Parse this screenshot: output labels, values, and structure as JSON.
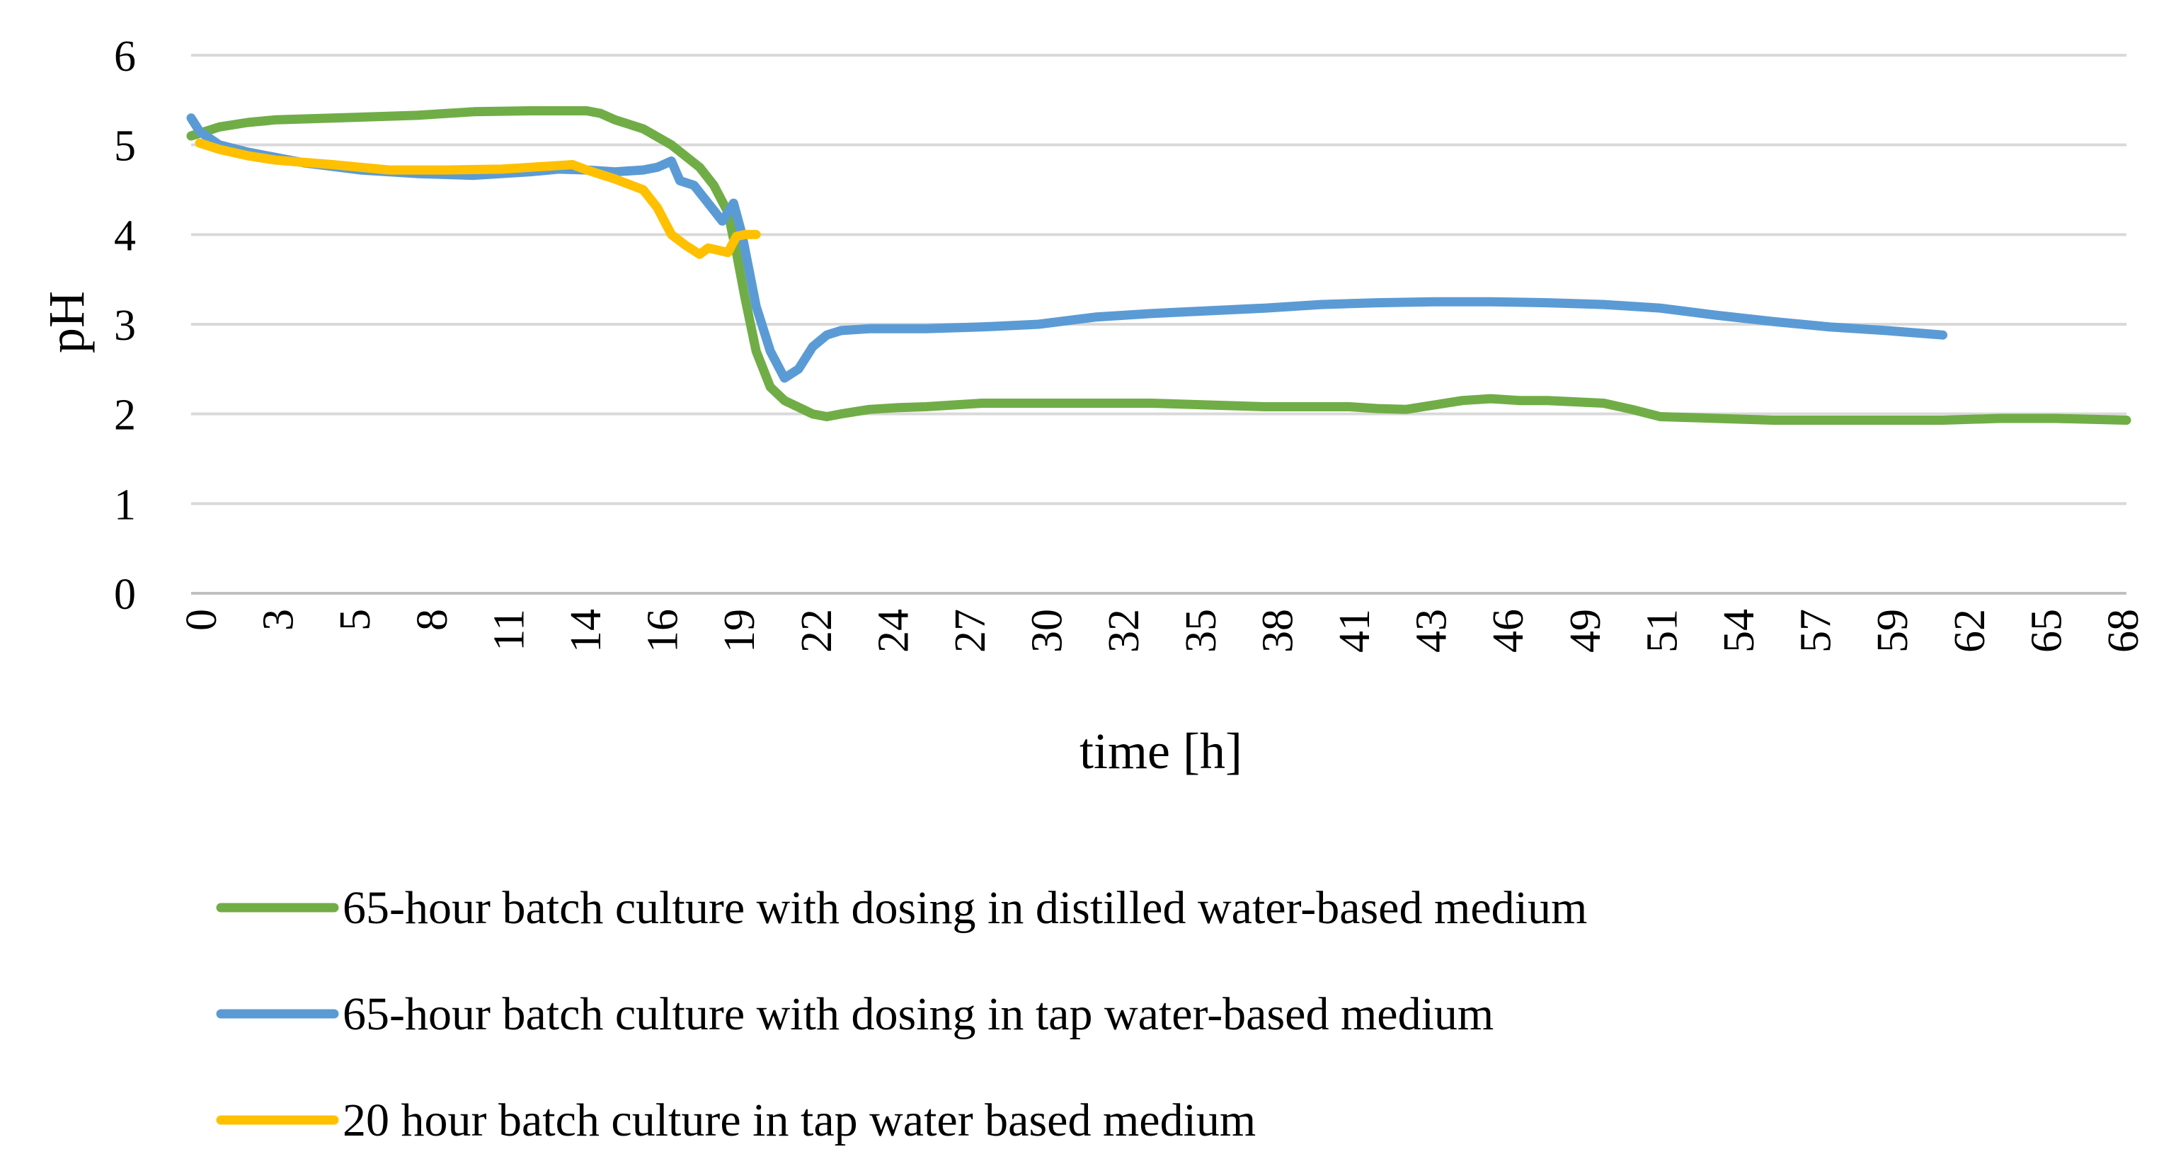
{
  "chart_data": {
    "type": "line",
    "title": "",
    "xlabel": "time [h]",
    "ylabel": "pH",
    "ylim": [
      0,
      6
    ],
    "yticks": [
      "0",
      "1",
      "2",
      "3",
      "4",
      "5",
      "6"
    ],
    "xlim": [
      0,
      68.5
    ],
    "xticks": [
      "0",
      "3",
      "5",
      "8",
      "11",
      "14",
      "16",
      "19",
      "22",
      "24",
      "27",
      "30",
      "32",
      "35",
      "38",
      "41",
      "43",
      "46",
      "49",
      "51",
      "54",
      "57",
      "59",
      "62",
      "65",
      "68"
    ],
    "grid": "horizontal",
    "legend_position": "bottom",
    "series": [
      {
        "name": "65-hour batch culture with dosing in distilled water-based medium",
        "color": "#70AD47",
        "x": [
          0,
          1,
          2,
          3,
          5,
          8,
          10,
          12,
          13,
          14,
          14.5,
          15,
          16,
          17,
          18,
          18.5,
          19,
          19.3,
          19.6,
          20,
          20.5,
          21,
          22,
          22.5,
          23,
          24,
          25,
          26,
          27,
          28,
          30,
          32,
          34,
          36,
          38,
          40,
          41,
          42,
          43,
          44,
          45,
          46,
          47,
          48,
          50,
          51,
          52,
          54,
          56,
          58,
          60,
          62,
          64,
          66,
          68.5
        ],
        "y": [
          5.1,
          5.2,
          5.25,
          5.28,
          5.3,
          5.33,
          5.37,
          5.38,
          5.38,
          5.38,
          5.35,
          5.28,
          5.18,
          5.0,
          4.75,
          4.55,
          4.25,
          3.8,
          3.3,
          2.7,
          2.3,
          2.15,
          2.0,
          1.97,
          2.0,
          2.05,
          2.07,
          2.08,
          2.1,
          2.12,
          2.12,
          2.12,
          2.12,
          2.1,
          2.08,
          2.08,
          2.08,
          2.06,
          2.05,
          2.1,
          2.15,
          2.17,
          2.15,
          2.15,
          2.12,
          2.05,
          1.97,
          1.95,
          1.93,
          1.93,
          1.93,
          1.93,
          1.95,
          1.95,
          1.93
        ]
      },
      {
        "name": "65-hour batch culture with dosing in tap water-based medium",
        "color": "#5B9BD5",
        "x": [
          0,
          0.3,
          1,
          2,
          4,
          6,
          8,
          10,
          12,
          13,
          14,
          15,
          16,
          16.5,
          17,
          17.3,
          17.8,
          18.3,
          18.8,
          19.2,
          19.5,
          20,
          20.5,
          21,
          21.5,
          22,
          22.5,
          23,
          24,
          26,
          28,
          30,
          32,
          34,
          36,
          38,
          40,
          42,
          44,
          46,
          48,
          50,
          52,
          54,
          56,
          58,
          60,
          62
        ],
        "y": [
          5.3,
          5.15,
          5.0,
          4.92,
          4.8,
          4.72,
          4.68,
          4.66,
          4.7,
          4.73,
          4.72,
          4.7,
          4.72,
          4.75,
          4.82,
          4.6,
          4.55,
          4.35,
          4.15,
          4.35,
          4.0,
          3.2,
          2.7,
          2.4,
          2.5,
          2.75,
          2.88,
          2.93,
          2.95,
          2.95,
          2.97,
          3.0,
          3.08,
          3.12,
          3.15,
          3.18,
          3.22,
          3.24,
          3.25,
          3.25,
          3.24,
          3.22,
          3.18,
          3.1,
          3.03,
          2.97,
          2.93,
          2.88
        ]
      },
      {
        "name": "20 hour batch culture in tap water based medium",
        "color": "#FFC000",
        "x": [
          0.3,
          1,
          2,
          3,
          5,
          7,
          9,
          11,
          12,
          13,
          13.5,
          14,
          15,
          16,
          16.5,
          17,
          17.5,
          18,
          18.3,
          18.6,
          19,
          19.3,
          19.6,
          20
        ],
        "y": [
          5.02,
          4.95,
          4.88,
          4.83,
          4.78,
          4.72,
          4.72,
          4.73,
          4.75,
          4.77,
          4.78,
          4.72,
          4.62,
          4.5,
          4.3,
          4.0,
          3.88,
          3.78,
          3.85,
          3.83,
          3.8,
          3.98,
          4.0,
          4.0
        ]
      }
    ]
  }
}
